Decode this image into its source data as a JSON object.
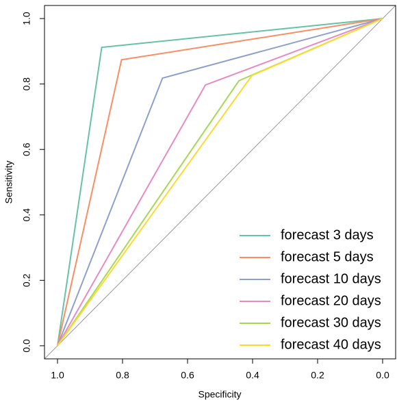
{
  "chart_data": {
    "type": "line",
    "xlabel": "Specificity",
    "ylabel": "Sensitivity",
    "xlim": [
      1.04,
      -0.04
    ],
    "ylim": [
      -0.04,
      1.04
    ],
    "xticks": [
      {
        "value": 1,
        "label": "1.0"
      },
      0.8,
      0.6,
      0.4,
      0.2,
      {
        "value": 0,
        "label": "0.0"
      }
    ],
    "yticks": [
      {
        "value": 0,
        "label": "0.0"
      },
      0.2,
      0.4,
      0.6,
      0.8,
      {
        "value": 1,
        "label": "1.0"
      }
    ],
    "legend": "bottom-right",
    "series": [
      {
        "name": "forecast 3 days",
        "color": "#66C2A5",
        "x": [
          1,
          0.864,
          0
        ],
        "values": [
          0,
          0.912,
          1
        ]
      },
      {
        "name": "forecast 5 days",
        "color": "#FC8D62",
        "x": [
          1,
          0.803,
          0
        ],
        "values": [
          0,
          0.874,
          1
        ]
      },
      {
        "name": "forecast 10 days",
        "color": "#8DA0CB",
        "x": [
          1,
          0.677,
          0
        ],
        "values": [
          0,
          0.818,
          1
        ]
      },
      {
        "name": "forecast 20 days",
        "color": "#E78AC3",
        "x": [
          1,
          0.545,
          0
        ],
        "values": [
          0,
          0.797,
          1
        ]
      },
      {
        "name": "forecast 30 days",
        "color": "#A6D854",
        "x": [
          1,
          0.442,
          0
        ],
        "values": [
          0,
          0.81,
          1
        ]
      },
      {
        "name": "forecast 40 days",
        "color": "#FFD92F",
        "x": [
          1,
          0.402,
          0
        ],
        "values": [
          0,
          0.826,
          1
        ]
      }
    ]
  }
}
